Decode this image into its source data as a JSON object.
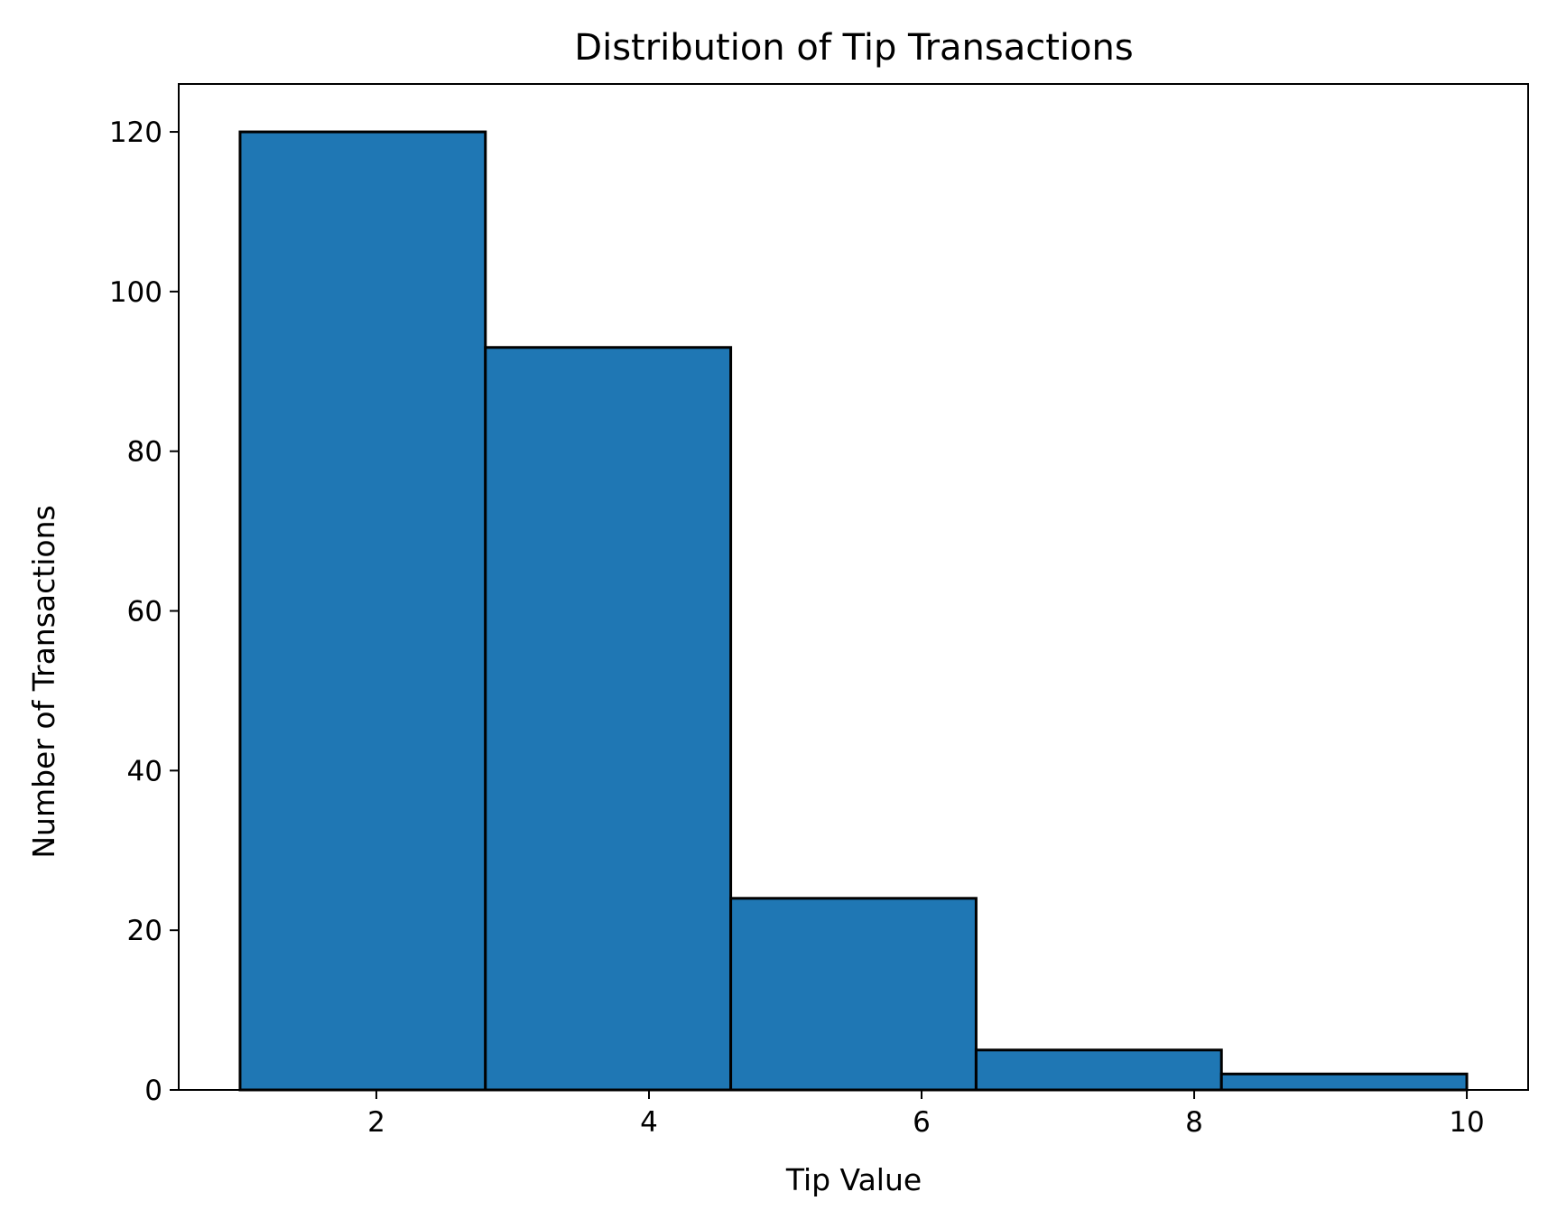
{
  "chart_data": {
    "type": "bar",
    "subtype": "histogram",
    "title": "Distribution of Tip Transactions",
    "xlabel": "Tip Value",
    "ylabel": "Number of Transactions",
    "bin_edges": [
      1.0,
      2.8,
      4.6,
      6.4,
      8.2,
      10.0
    ],
    "values": [
      120,
      93,
      24,
      5,
      2
    ],
    "xlim": [
      0.55,
      10.45
    ],
    "ylim": [
      0,
      126
    ],
    "xticks": [
      2,
      4,
      6,
      8,
      10
    ],
    "yticks": [
      0,
      20,
      40,
      60,
      80,
      100,
      120
    ],
    "grid": false,
    "bar_color": "#1f77b4",
    "edge_color": "#000000"
  }
}
